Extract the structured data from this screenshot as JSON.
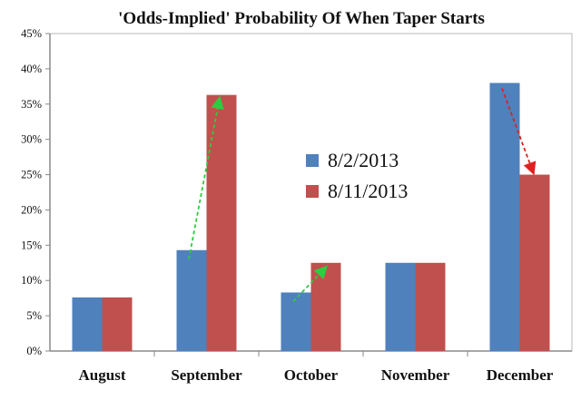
{
  "chart_data": {
    "type": "bar",
    "title": "'Odds-Implied' Probability Of When Taper Starts",
    "categories": [
      "August",
      "September",
      "October",
      "November",
      "December"
    ],
    "series": [
      {
        "name": "8/2/2013",
        "values": [
          7.6,
          14.3,
          8.3,
          12.5,
          38.0
        ],
        "color": "#4F81BD"
      },
      {
        "name": "8/11/2013",
        "values": [
          7.6,
          36.3,
          12.5,
          12.5,
          25.0
        ],
        "color": "#C0504D"
      }
    ],
    "ylim": [
      0,
      45
    ],
    "yticks": [
      "0%",
      "5%",
      "10%",
      "15%",
      "20%",
      "25%",
      "30%",
      "35%",
      "40%",
      "45%"
    ],
    "ytick_values": [
      0,
      5,
      10,
      15,
      20,
      25,
      30,
      35,
      40,
      45
    ],
    "xlabel": "",
    "ylabel": "",
    "grid": false,
    "legend_position": "center",
    "annotations": [
      {
        "type": "arrow",
        "category": "September",
        "from_value": 14.3,
        "to_value": 36.3,
        "color": "#2ECC40",
        "direction": "increase"
      },
      {
        "type": "arrow",
        "category": "October",
        "from_value": 8.3,
        "to_value": 12.5,
        "color": "#2ECC40",
        "direction": "increase"
      },
      {
        "type": "arrow",
        "category": "December",
        "from_value": 38.0,
        "to_value": 25.0,
        "color": "#E02020",
        "direction": "decrease"
      }
    ]
  }
}
